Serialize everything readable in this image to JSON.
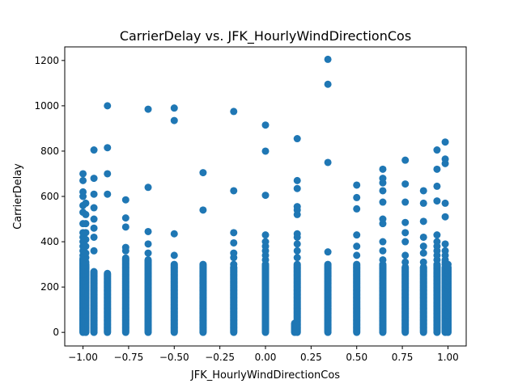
{
  "chart_data": {
    "type": "scatter",
    "title": "CarrierDelay vs. JFK_HourlyWindDirectionCos",
    "xlabel": "JFK_HourlyWindDirectionCos",
    "ylabel": "CarrierDelay",
    "xlim": [
      -1.1,
      1.1
    ],
    "ylim": [
      -60,
      1260
    ],
    "xticks": [
      -1.0,
      -0.75,
      -0.5,
      -0.25,
      0.0,
      0.25,
      0.5,
      0.75,
      1.0
    ],
    "xtick_labels": [
      "−1.00",
      "−0.75",
      "−0.50",
      "−0.25",
      "0.00",
      "0.25",
      "0.50",
      "0.75",
      "1.00"
    ],
    "yticks": [
      0,
      200,
      400,
      600,
      800,
      1000,
      1200
    ],
    "ytick_labels": [
      "0",
      "200",
      "400",
      "600",
      "800",
      "1000",
      "1200"
    ],
    "grid": false,
    "marker_color": "#1f77b4",
    "series": [
      {
        "name": "",
        "columns": [
          {
            "x": -1.0,
            "max": 320,
            "outliers": [
              325,
              340,
              360,
              380,
              400,
              420,
              440,
              480,
              530,
              560,
              600,
              620,
              670,
              700
            ]
          },
          {
            "x": -0.985,
            "max": 300,
            "outliers": [
              310,
              330,
              350,
              380,
              410,
              440,
              480,
              520,
              570
            ]
          },
          {
            "x": -0.94,
            "max": 270,
            "outliers": [
              360,
              420,
              460,
              500,
              550,
              610,
              680,
              805
            ]
          },
          {
            "x": -0.866,
            "max": 260,
            "outliers": [
              610,
              700,
              815,
              1000
            ]
          },
          {
            "x": -0.766,
            "max": 330,
            "outliers": [
              360,
              375,
              465,
              505,
              585
            ]
          },
          {
            "x": -0.643,
            "max": 320,
            "outliers": [
              350,
              390,
              445,
              640,
              985
            ]
          },
          {
            "x": -0.5,
            "max": 300,
            "outliers": [
              340,
              435,
              935,
              990
            ]
          },
          {
            "x": -0.342,
            "max": 300,
            "outliers": [
              540,
              705
            ]
          },
          {
            "x": -0.174,
            "max": 290,
            "outliers": [
              300,
              330,
              350,
              395,
              440,
              625,
              975
            ]
          },
          {
            "x": 0.0,
            "max": 300,
            "outliers": [
              320,
              340,
              360,
              380,
              400,
              430,
              605,
              800,
              915
            ]
          },
          {
            "x": 0.16,
            "max": 40,
            "outliers": []
          },
          {
            "x": 0.174,
            "max": 300,
            "outliers": [
              330,
              360,
              390,
              420,
              435,
              520,
              540,
              555,
              635,
              670,
              855
            ]
          },
          {
            "x": 0.342,
            "max": 300,
            "outliers": [
              355,
              750,
              1095,
              1205
            ]
          },
          {
            "x": 0.5,
            "max": 300,
            "outliers": [
              340,
              380,
              430,
              545,
              595,
              650
            ]
          },
          {
            "x": 0.643,
            "max": 300,
            "outliers": [
              320,
              360,
              400,
              480,
              500,
              575,
              625,
              660,
              680,
              720
            ]
          },
          {
            "x": 0.766,
            "max": 290,
            "outliers": [
              310,
              340,
              400,
              440,
              485,
              575,
              655,
              760
            ]
          },
          {
            "x": 0.866,
            "max": 290,
            "outliers": [
              310,
              350,
              380,
              420,
              490,
              570,
              625
            ]
          },
          {
            "x": 0.94,
            "max": 300,
            "outliers": [
              320,
              340,
              360,
              380,
              400,
              430,
              580,
              645,
              720,
              805
            ]
          },
          {
            "x": 0.985,
            "max": 290,
            "outliers": [
              300,
              310,
              320,
              340,
              360,
              390,
              510,
              570,
              745,
              765,
              840
            ]
          },
          {
            "x": 1.0,
            "max": 290,
            "outliers": [
              300
            ]
          }
        ]
      }
    ]
  }
}
